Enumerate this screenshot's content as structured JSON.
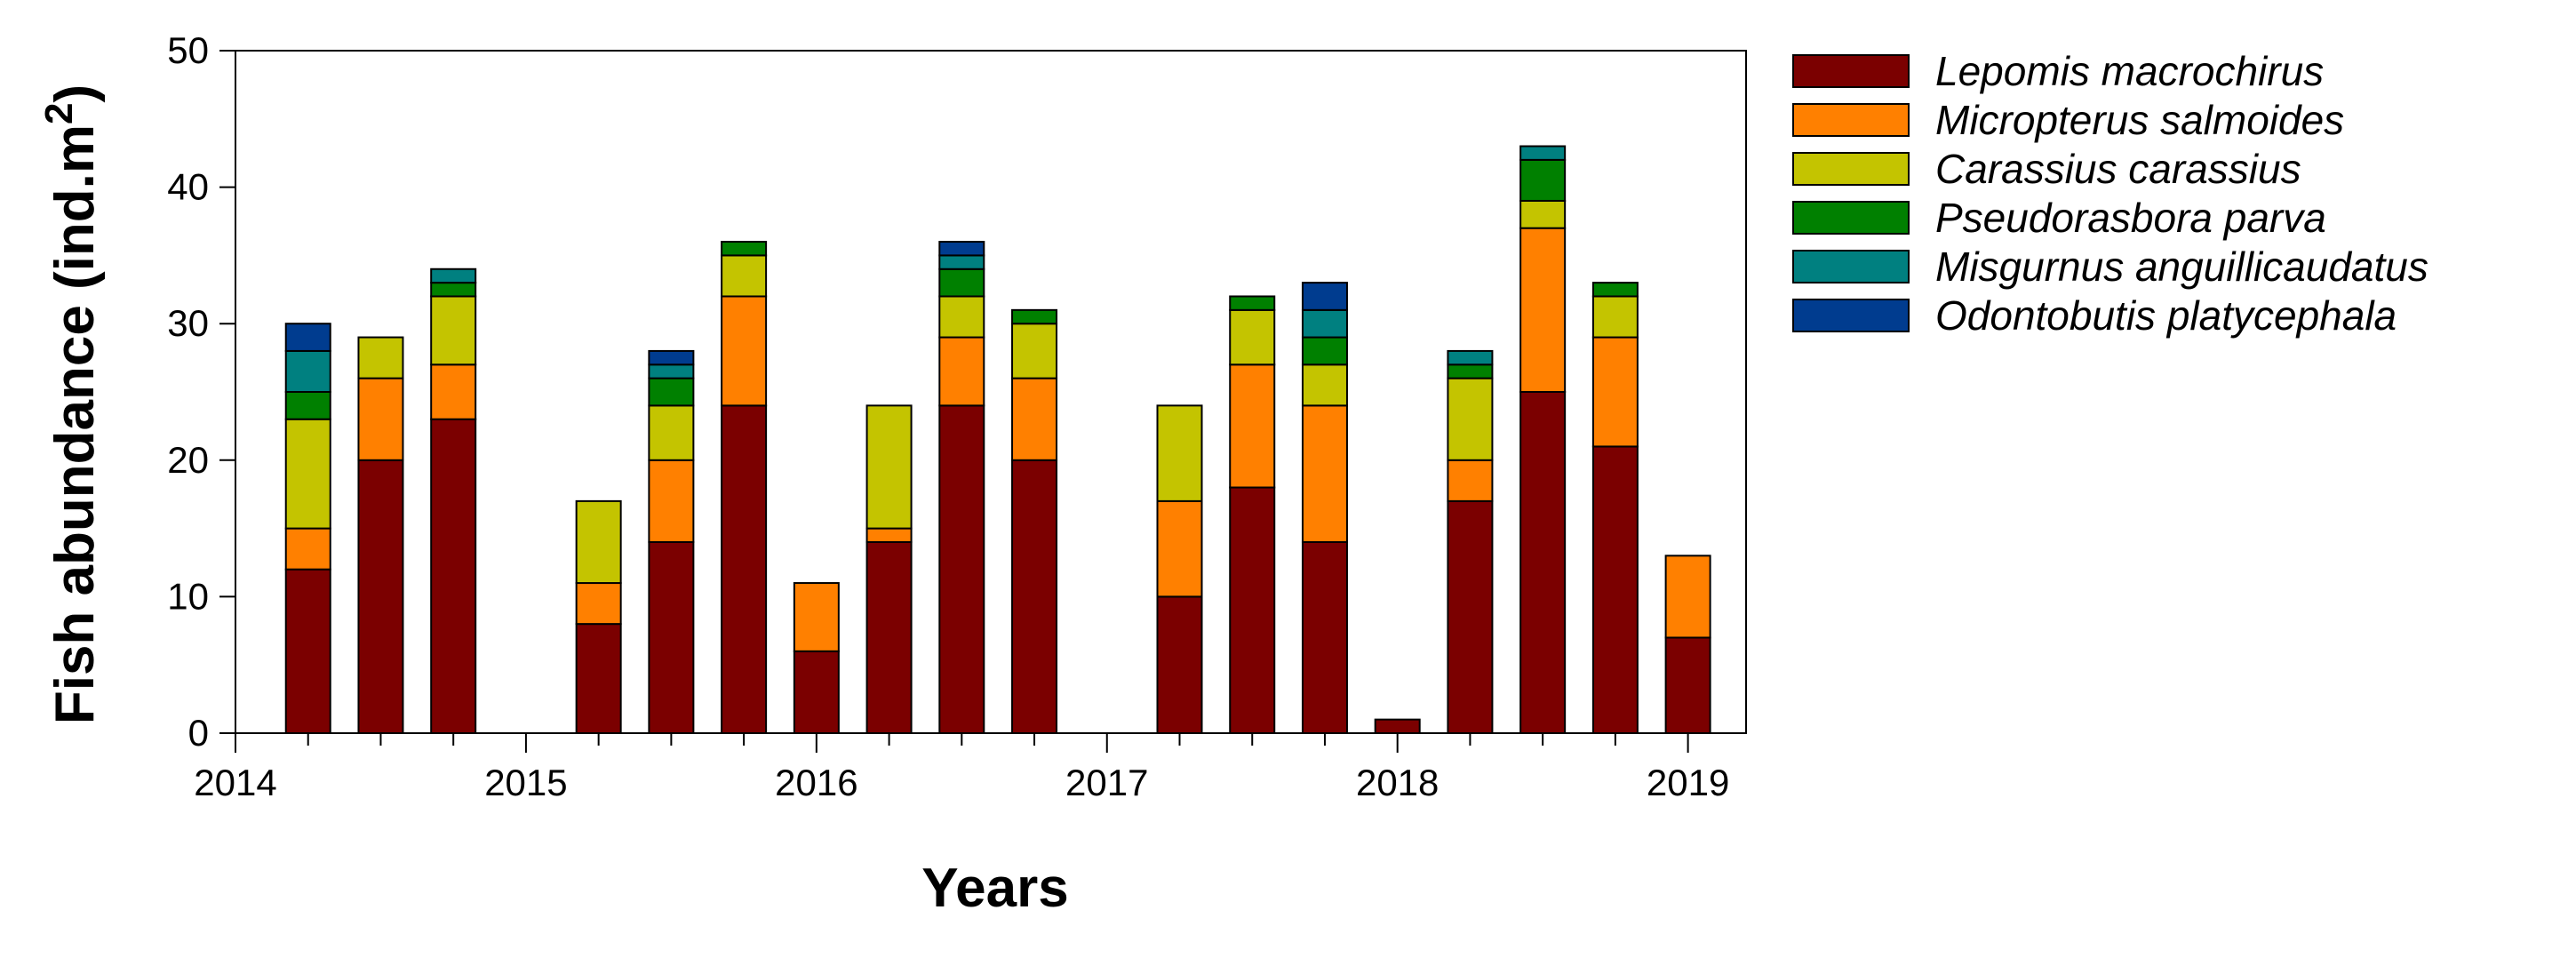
{
  "chart_data": {
    "type": "bar",
    "stacked": true,
    "title": "",
    "xlabel": "Years",
    "ylabel": "Fish abundance (ind.m",
    "ylabel_superscript": "2",
    "ylabel_close": ")",
    "xlim": [
      2014,
      2019.2
    ],
    "ylim": [
      0,
      50
    ],
    "grid": false,
    "legend_position": "right",
    "x_ticks": [
      2014,
      2015,
      2016,
      2017,
      2018,
      2019
    ],
    "x_tick_labels": [
      "2014",
      "2015",
      "2016",
      "2017",
      "2018",
      "2019"
    ],
    "y_ticks": [
      0,
      10,
      20,
      30,
      40,
      50
    ],
    "y_tick_labels": [
      "0",
      "10",
      "20",
      "30",
      "40",
      "50"
    ],
    "x": [
      2014.25,
      2014.5,
      2014.75,
      2015.25,
      2015.5,
      2015.75,
      2016.0,
      2016.25,
      2016.5,
      2016.75,
      2017.25,
      2017.5,
      2017.75,
      2018.0,
      2018.25,
      2018.5,
      2018.75,
      2019.0
    ],
    "series": [
      {
        "name": "Lepomis macrochirus",
        "color": "#7b0000",
        "values": [
          12,
          20,
          23,
          8,
          14,
          24,
          6,
          14,
          24,
          20,
          10,
          18,
          14,
          1,
          17,
          25,
          21,
          7
        ]
      },
      {
        "name": "Micropterus salmoides",
        "color": "#ff8000",
        "values": [
          3,
          6,
          4,
          3,
          6,
          8,
          5,
          1,
          5,
          6,
          7,
          9,
          10,
          0,
          3,
          12,
          8,
          6
        ]
      },
      {
        "name": "Carassius carassius",
        "color": "#c4c400",
        "values": [
          8,
          3,
          5,
          6,
          4,
          3,
          0,
          9,
          3,
          4,
          7,
          4,
          3,
          0,
          6,
          2,
          3,
          0
        ]
      },
      {
        "name": "Pseudorasbora parva",
        "color": "#008000",
        "values": [
          2,
          0,
          1,
          0,
          2,
          1,
          0,
          0,
          2,
          1,
          0,
          1,
          2,
          0,
          1,
          3,
          1,
          0
        ]
      },
      {
        "name": "Misgurnus anguillicaudatus",
        "color": "#008080",
        "values": [
          3,
          0,
          1,
          0,
          1,
          0,
          0,
          0,
          1,
          0,
          0,
          0,
          2,
          0,
          1,
          1,
          0,
          0
        ]
      },
      {
        "name": "Odontobutis platycephala",
        "color": "#003c8f",
        "values": [
          2,
          0,
          0,
          0,
          1,
          0,
          0,
          0,
          1,
          0,
          0,
          0,
          2,
          0,
          0,
          0,
          0,
          0
        ]
      }
    ]
  }
}
